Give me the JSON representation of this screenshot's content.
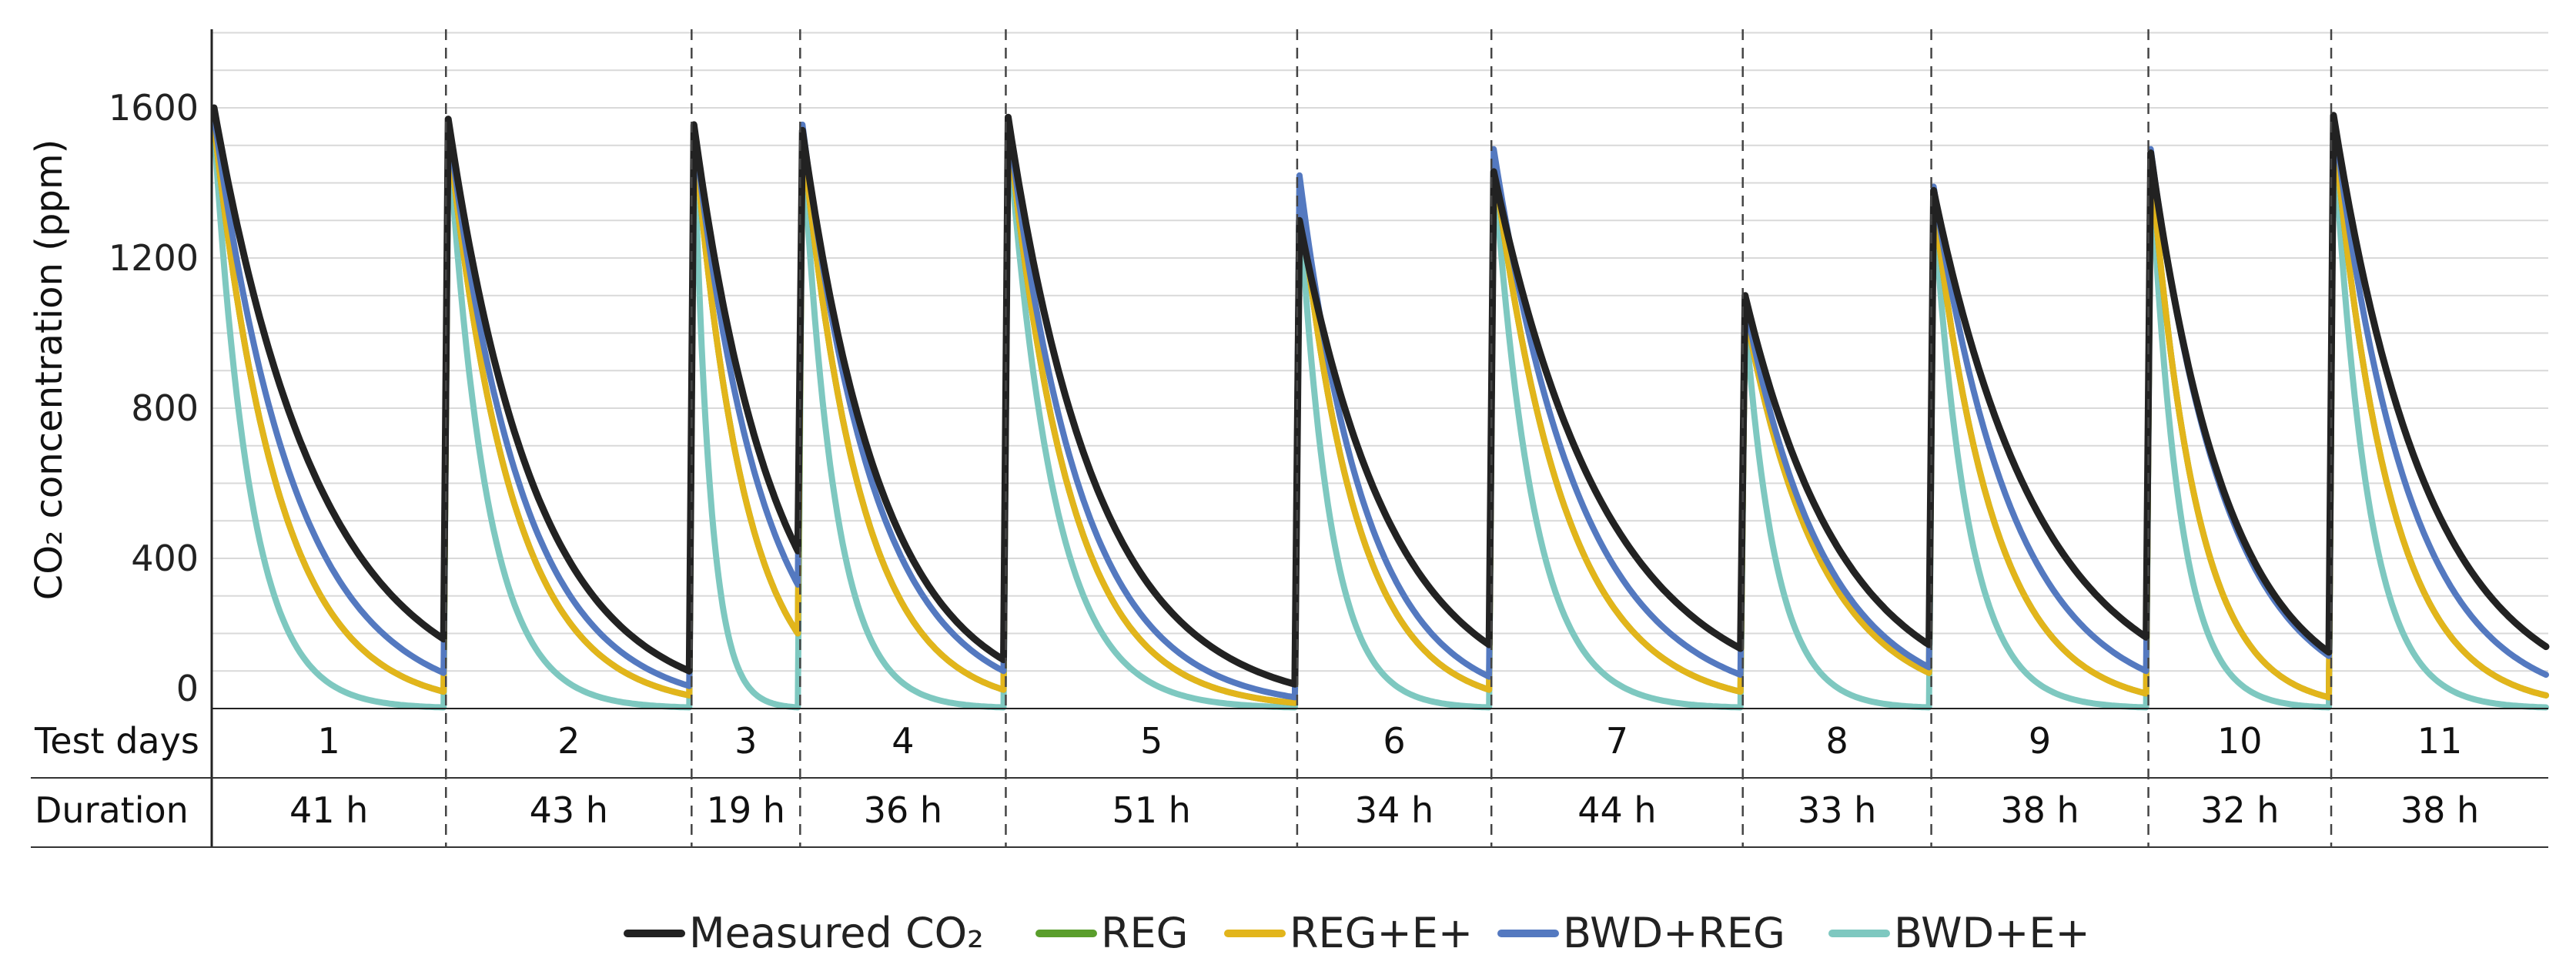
{
  "chart_data": {
    "type": "line",
    "title": "",
    "ylabel": "CO₂ concentration (ppm)",
    "xlabel": "",
    "ylim": [
      0,
      1800
    ],
    "yticks": [
      0,
      400,
      800,
      1200,
      1600
    ],
    "grid": true,
    "legend_position": "bottom-center",
    "table": {
      "row_labels": [
        "Test days",
        "Duration"
      ],
      "days": [
        "1",
        "2",
        "3",
        "4",
        "5",
        "6",
        "7",
        "8",
        "9",
        "10",
        "11"
      ],
      "durations": [
        "41 h",
        "43 h",
        "19 h",
        "36 h",
        "51 h",
        "34 h",
        "44 h",
        "33 h",
        "38 h",
        "32 h",
        "38 h"
      ],
      "hours": [
        41,
        43,
        19,
        36,
        51,
        34,
        44,
        33,
        38,
        32,
        38
      ]
    },
    "series": [
      {
        "name": "Measured CO₂",
        "color": "#222222",
        "start": [
          1600,
          1570,
          1555,
          1540,
          1575,
          1300,
          1430,
          1100,
          1380,
          1480,
          1580
        ],
        "end": [
          185,
          100,
          420,
          130,
          65,
          170,
          160,
          170,
          190,
          150,
          165
        ]
      },
      {
        "name": "REG",
        "color": "#5a9e2c",
        "start": [
          1560,
          1540,
          1540,
          1530,
          1560,
          1380,
          1460,
          1060,
          1360,
          1470,
          1560
        ],
        "end": [
          45,
          35,
          200,
          50,
          15,
          50,
          45,
          95,
          40,
          30,
          35
        ]
      },
      {
        "name": "REG+E+",
        "color": "#e2b51b",
        "start": [
          1560,
          1540,
          1540,
          1530,
          1560,
          1380,
          1460,
          1060,
          1360,
          1470,
          1560
        ],
        "end": [
          45,
          35,
          200,
          50,
          15,
          50,
          45,
          95,
          40,
          30,
          35
        ]
      },
      {
        "name": "BWD+REG",
        "color": "#5479c0",
        "start": [
          1580,
          1560,
          1550,
          1555,
          1570,
          1420,
          1490,
          1080,
          1390,
          1490,
          1580
        ],
        "end": [
          95,
          60,
          330,
          100,
          30,
          85,
          90,
          110,
          100,
          140,
          90
        ]
      },
      {
        "name": "BWD+E+",
        "color": "#7ec8c0",
        "start": [
          1550,
          1540,
          1540,
          1530,
          1550,
          1360,
          1460,
          1050,
          1350,
          1460,
          1550
        ],
        "end": [
          3,
          3,
          3,
          3,
          3,
          3,
          3,
          3,
          3,
          3,
          3
        ]
      }
    ]
  }
}
